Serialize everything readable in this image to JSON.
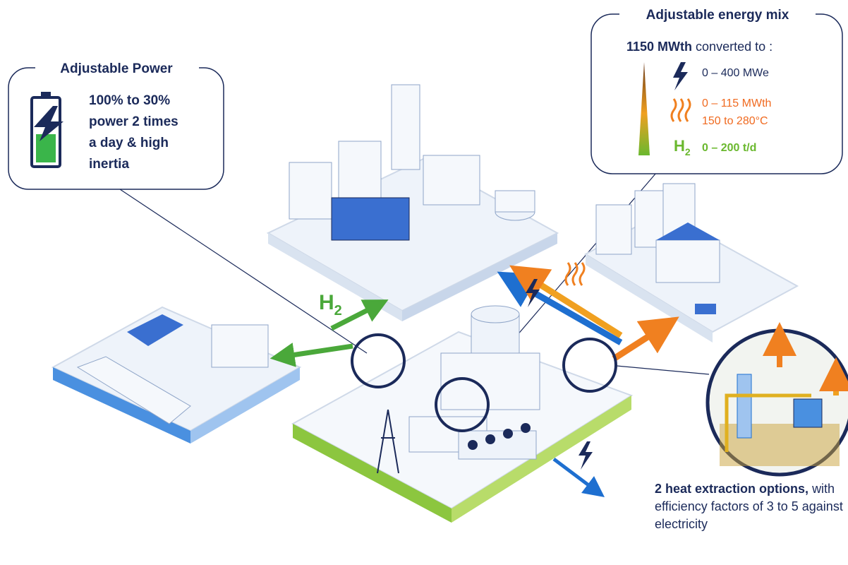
{
  "adjustable_power": {
    "title": "Adjustable Power",
    "lines": [
      "100% to 30%",
      "power 2 times",
      "a day & high",
      "inertia"
    ]
  },
  "energy_mix": {
    "title": "Adjustable energy mix",
    "input_value": "1150 MWth",
    "input_text": "converted to :",
    "electricity": "0 – 400 MWe",
    "heat_power": "0 – 115 MWth",
    "heat_temperature": "150 to 280°C",
    "hydrogen_symbol": "H",
    "hydrogen_subscript": "2",
    "hydrogen": "0 – 200 t/d"
  },
  "arrow_label": {
    "symbol": "H",
    "subscript": "2"
  },
  "heat_extraction": {
    "bold": "2 heat extraction options,",
    "text": "with efficiency factors of 3 to 5 against electricity"
  }
}
